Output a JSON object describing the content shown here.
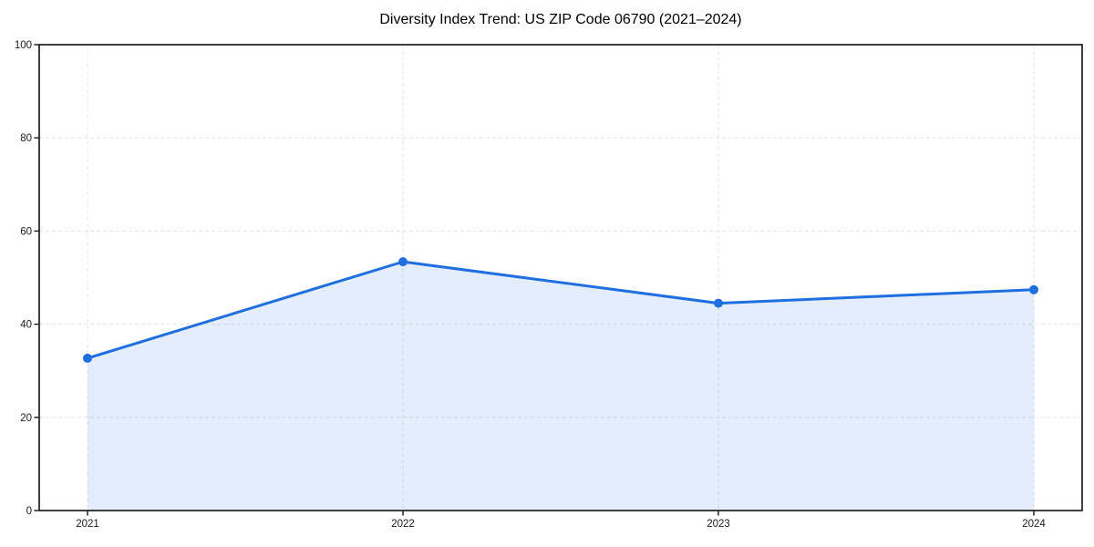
{
  "chart_data": {
    "type": "line",
    "title": "Diversity Index Trend: US ZIP Code 06790 (2021–2024)",
    "categories": [
      "2021",
      "2022",
      "2023",
      "2024"
    ],
    "series": [
      {
        "name": "Diversity Index",
        "values": [
          32.7,
          53.4,
          44.5,
          47.4
        ]
      }
    ],
    "ylim": [
      0,
      100
    ],
    "yticks": [
      0,
      20,
      40,
      60,
      80,
      100
    ],
    "grid": true,
    "grid_style": "dashed",
    "legend_position": "none",
    "marker": "circle",
    "line_color": "#1f6fe0",
    "fill_color": "#1f6fe0",
    "fill_opacity": 0.12,
    "grid_color": "#e3e3e3",
    "axis_color": "#000000",
    "text_color": "#1a1a1a"
  }
}
